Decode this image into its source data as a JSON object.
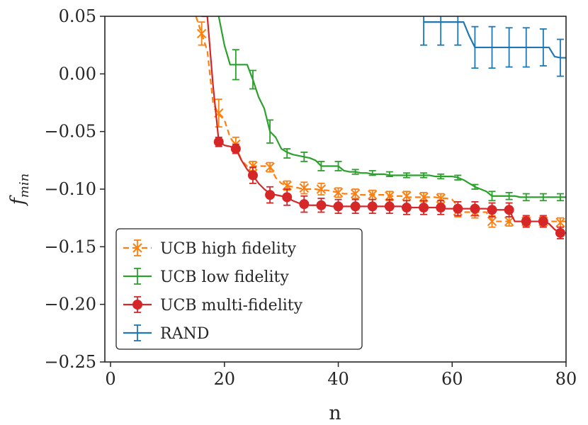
{
  "chart_data": {
    "type": "line",
    "title": "",
    "xlabel": "n",
    "ylabel": "f",
    "ylabel_sub": "min",
    "xlim": [
      -1,
      80
    ],
    "ylim": [
      -0.25,
      0.05
    ],
    "xticks": [
      0,
      20,
      40,
      60,
      80
    ],
    "xtick_labels": [
      "0",
      "20",
      "40",
      "60",
      "80"
    ],
    "yticks": [
      -0.25,
      -0.2,
      -0.15,
      -0.1,
      -0.05,
      0.0,
      0.05
    ],
    "ytick_labels": [
      "−0.25",
      "−0.20",
      "−0.15",
      "−0.10",
      "−0.05",
      "0.00",
      "0.05"
    ],
    "legend_position": "lower-left",
    "series": [
      {
        "name": "UCB high fidelity",
        "color": "#ff7f0e",
        "linestyle": "dashed",
        "marker": "x",
        "x": [
          15,
          16,
          17,
          18,
          19,
          20,
          21,
          22,
          23,
          24,
          25,
          26,
          27,
          28,
          29,
          30,
          31,
          32,
          33,
          34,
          35,
          36,
          37,
          38,
          39,
          40,
          41,
          42,
          43,
          44,
          45,
          46,
          47,
          48,
          49,
          50,
          51,
          52,
          53,
          54,
          55,
          56,
          57,
          58,
          59,
          60,
          61,
          62,
          63,
          64,
          65,
          66,
          67,
          68,
          69,
          70,
          71,
          72,
          73,
          74,
          75,
          76,
          77,
          78,
          79,
          80
        ],
        "y": [
          0.05,
          0.035,
          0.02,
          -0.025,
          -0.035,
          -0.04,
          -0.055,
          -0.062,
          -0.075,
          -0.08,
          -0.08,
          -0.08,
          -0.08,
          -0.08,
          -0.09,
          -0.095,
          -0.097,
          -0.098,
          -0.099,
          -0.1,
          -0.1,
          -0.1,
          -0.101,
          -0.101,
          -0.102,
          -0.103,
          -0.104,
          -0.104,
          -0.104,
          -0.105,
          -0.105,
          -0.105,
          -0.105,
          -0.105,
          -0.106,
          -0.106,
          -0.106,
          -0.107,
          -0.107,
          -0.107,
          -0.107,
          -0.107,
          -0.107,
          -0.108,
          -0.108,
          -0.109,
          -0.115,
          -0.12,
          -0.12,
          -0.12,
          -0.12,
          -0.12,
          -0.128,
          -0.128,
          -0.128,
          -0.128,
          -0.128,
          -0.128,
          -0.128,
          -0.128,
          -0.128,
          -0.128,
          -0.128,
          -0.128,
          -0.128,
          -0.128
        ],
        "error_x": [
          16,
          19,
          22,
          25,
          28,
          31,
          34,
          37,
          40,
          43,
          46,
          49,
          52,
          55,
          58,
          61,
          64,
          67,
          70,
          73,
          76,
          79
        ],
        "error_y": [
          0.035,
          -0.034,
          -0.061,
          -0.08,
          -0.081,
          -0.097,
          -0.099,
          -0.1,
          -0.103,
          -0.104,
          -0.105,
          -0.106,
          -0.106,
          -0.107,
          -0.108,
          -0.119,
          -0.12,
          -0.128,
          -0.128,
          -0.128,
          -0.128,
          -0.129
        ],
        "error_err": [
          0.01,
          0.012,
          0.006,
          0.004,
          0.004,
          0.004,
          0.005,
          0.005,
          0.004,
          0.004,
          0.004,
          0.004,
          0.004,
          0.004,
          0.004,
          0.005,
          0.005,
          0.005,
          0.004,
          0.004,
          0.004,
          0.004
        ]
      },
      {
        "name": "UCB low fidelity",
        "color": "#2ca02c",
        "linestyle": "solid",
        "marker": "none",
        "x": [
          19,
          20,
          21,
          22,
          23,
          24,
          25,
          26,
          27,
          28,
          29,
          30,
          31,
          32,
          33,
          34,
          35,
          36,
          37,
          38,
          39,
          40,
          41,
          42,
          43,
          44,
          45,
          46,
          47,
          48,
          49,
          50,
          51,
          52,
          53,
          54,
          55,
          56,
          57,
          58,
          59,
          60,
          61,
          62,
          63,
          64,
          65,
          66,
          67,
          68,
          69,
          70,
          71,
          72,
          73,
          74,
          75,
          76,
          77,
          78,
          79,
          80
        ],
        "y": [
          0.05,
          0.025,
          0.008,
          0.008,
          0.008,
          0.008,
          -0.005,
          -0.02,
          -0.03,
          -0.05,
          -0.055,
          -0.065,
          -0.068,
          -0.07,
          -0.071,
          -0.072,
          -0.073,
          -0.075,
          -0.08,
          -0.08,
          -0.08,
          -0.08,
          -0.084,
          -0.085,
          -0.085,
          -0.086,
          -0.086,
          -0.087,
          -0.087,
          -0.087,
          -0.088,
          -0.088,
          -0.088,
          -0.088,
          -0.088,
          -0.088,
          -0.088,
          -0.088,
          -0.089,
          -0.089,
          -0.089,
          -0.089,
          -0.09,
          -0.092,
          -0.095,
          -0.098,
          -0.1,
          -0.102,
          -0.106,
          -0.106,
          -0.106,
          -0.106,
          -0.106,
          -0.107,
          -0.107,
          -0.107,
          -0.107,
          -0.107,
          -0.107,
          -0.107,
          -0.107,
          -0.107
        ],
        "error_x": [
          22,
          25,
          28,
          31,
          34,
          37,
          40,
          43,
          46,
          49,
          52,
          55,
          58,
          61,
          64,
          67,
          70,
          73,
          76,
          79
        ],
        "error_y": [
          0.008,
          -0.005,
          -0.05,
          -0.069,
          -0.072,
          -0.08,
          -0.08,
          -0.085,
          -0.086,
          -0.087,
          -0.088,
          -0.088,
          -0.089,
          -0.09,
          -0.098,
          -0.106,
          -0.106,
          -0.107,
          -0.107,
          -0.107
        ],
        "error_err": [
          0.013,
          0.008,
          0.01,
          0.004,
          0.004,
          0.004,
          0.004,
          0.002,
          0.002,
          0.002,
          0.002,
          0.002,
          0.002,
          0.002,
          0.002,
          0.004,
          0.003,
          0.003,
          0.003,
          0.003
        ]
      },
      {
        "name": "UCB multi-fidelity",
        "color": "#d62728",
        "linestyle": "solid",
        "marker": "o",
        "x": [
          16,
          17,
          18,
          19,
          20,
          21,
          22,
          23,
          24,
          25,
          26,
          27,
          28,
          29,
          30,
          31,
          32,
          33,
          34,
          35,
          36,
          37,
          38,
          39,
          40,
          41,
          42,
          43,
          44,
          45,
          46,
          47,
          48,
          49,
          50,
          51,
          52,
          53,
          54,
          55,
          56,
          57,
          58,
          59,
          60,
          61,
          62,
          63,
          64,
          65,
          66,
          67,
          68,
          69,
          70,
          71,
          72,
          73,
          74,
          75,
          76,
          77,
          78,
          79,
          80
        ],
        "y": [
          0.05,
          0.05,
          -0.01,
          -0.058,
          -0.062,
          -0.063,
          -0.065,
          -0.075,
          -0.083,
          -0.088,
          -0.095,
          -0.1,
          -0.104,
          -0.105,
          -0.106,
          -0.107,
          -0.11,
          -0.112,
          -0.113,
          -0.114,
          -0.114,
          -0.114,
          -0.114,
          -0.115,
          -0.115,
          -0.115,
          -0.115,
          -0.115,
          -0.115,
          -0.115,
          -0.115,
          -0.115,
          -0.115,
          -0.115,
          -0.115,
          -0.115,
          -0.116,
          -0.116,
          -0.116,
          -0.116,
          -0.116,
          -0.116,
          -0.116,
          -0.117,
          -0.117,
          -0.117,
          -0.117,
          -0.117,
          -0.117,
          -0.117,
          -0.117,
          -0.118,
          -0.118,
          -0.118,
          -0.118,
          -0.128,
          -0.128,
          -0.128,
          -0.128,
          -0.128,
          -0.128,
          -0.13,
          -0.135,
          -0.138,
          -0.138
        ],
        "error_x": [
          19,
          22,
          25,
          28,
          31,
          34,
          37,
          40,
          43,
          46,
          49,
          52,
          55,
          58,
          61,
          64,
          67,
          70,
          73,
          76,
          79
        ],
        "error_y": [
          -0.059,
          -0.065,
          -0.088,
          -0.105,
          -0.107,
          -0.113,
          -0.114,
          -0.115,
          -0.115,
          -0.115,
          -0.115,
          -0.116,
          -0.116,
          -0.116,
          -0.117,
          -0.117,
          -0.118,
          -0.118,
          -0.128,
          -0.128,
          -0.138
        ],
        "error_err": [
          0.004,
          0.004,
          0.007,
          0.007,
          0.007,
          0.007,
          0.006,
          0.006,
          0.006,
          0.006,
          0.006,
          0.006,
          0.006,
          0.006,
          0.006,
          0.006,
          0.006,
          0.006,
          0.005,
          0.005,
          0.005
        ]
      },
      {
        "name": "RAND",
        "color": "#1f77b4",
        "linestyle": "solid",
        "marker": "none",
        "x": [
          55,
          56,
          57,
          58,
          59,
          60,
          61,
          62,
          63,
          64,
          65,
          66,
          67,
          68,
          69,
          70,
          71,
          72,
          73,
          74,
          75,
          76,
          77,
          78,
          79,
          80
        ],
        "y": [
          0.045,
          0.045,
          0.045,
          0.045,
          0.045,
          0.045,
          0.045,
          0.045,
          0.033,
          0.023,
          0.023,
          0.023,
          0.023,
          0.023,
          0.023,
          0.023,
          0.023,
          0.023,
          0.023,
          0.023,
          0.023,
          0.023,
          0.023,
          0.015,
          0.014,
          0.014
        ],
        "error_x": [
          55,
          58,
          61,
          64,
          67,
          70,
          73,
          76,
          79
        ],
        "error_y": [
          0.045,
          0.045,
          0.045,
          0.023,
          0.023,
          0.023,
          0.023,
          0.023,
          0.014
        ],
        "error_err": [
          0.02,
          0.02,
          0.02,
          0.018,
          0.018,
          0.017,
          0.017,
          0.016,
          0.016
        ]
      }
    ]
  }
}
